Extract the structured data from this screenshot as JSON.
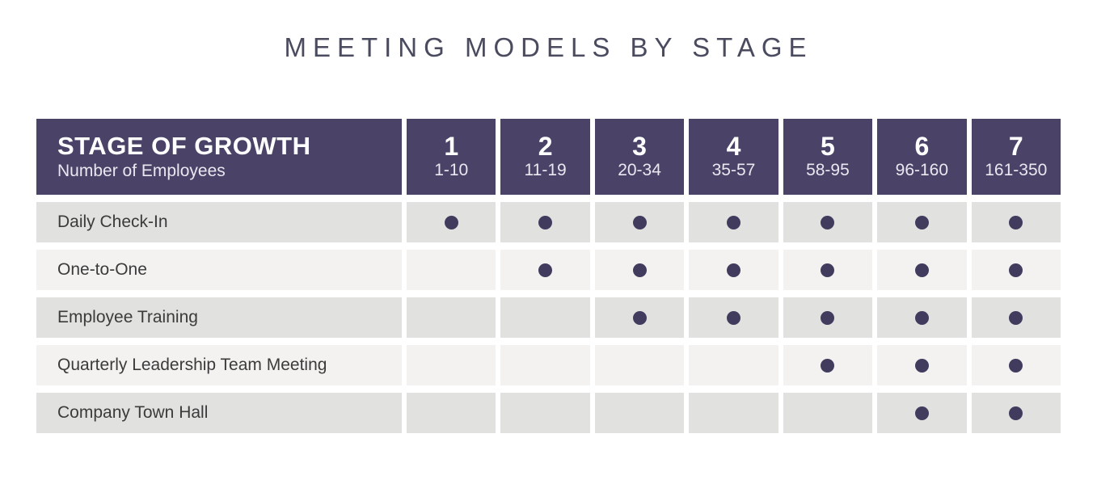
{
  "title": "MEETING MODELS BY STAGE",
  "colors": {
    "title-text": "#4b4b60",
    "header-bg": "#4b4367",
    "header-subtext": "#e9e7f0",
    "row-dark": "#e1e1e0",
    "row-light": "#f3f2f1",
    "label-text": "#3b3b3b",
    "dot": "#413c5d"
  },
  "chart_data": {
    "type": "table",
    "title": "MEETING MODELS BY STAGE",
    "header": {
      "title": "STAGE OF GROWTH",
      "subtitle": "Number of Employees"
    },
    "stages": [
      {
        "number": "1",
        "range": "1-10"
      },
      {
        "number": "2",
        "range": "11-19"
      },
      {
        "number": "3",
        "range": "20-34"
      },
      {
        "number": "4",
        "range": "35-57"
      },
      {
        "number": "5",
        "range": "58-95"
      },
      {
        "number": "6",
        "range": "96-160"
      },
      {
        "number": "7",
        "range": "161-350"
      }
    ],
    "rows": [
      {
        "label": "Daily Check-In",
        "dots": [
          true,
          true,
          true,
          true,
          true,
          true,
          true
        ]
      },
      {
        "label": "One-to-One",
        "dots": [
          false,
          true,
          true,
          true,
          true,
          true,
          true
        ]
      },
      {
        "label": "Employee Training",
        "dots": [
          false,
          false,
          true,
          true,
          true,
          true,
          true
        ]
      },
      {
        "label": "Quarterly Leadership Team Meeting",
        "dots": [
          false,
          false,
          false,
          false,
          true,
          true,
          true
        ]
      },
      {
        "label": "Company Town Hall",
        "dots": [
          false,
          false,
          false,
          false,
          false,
          true,
          true
        ]
      }
    ]
  }
}
